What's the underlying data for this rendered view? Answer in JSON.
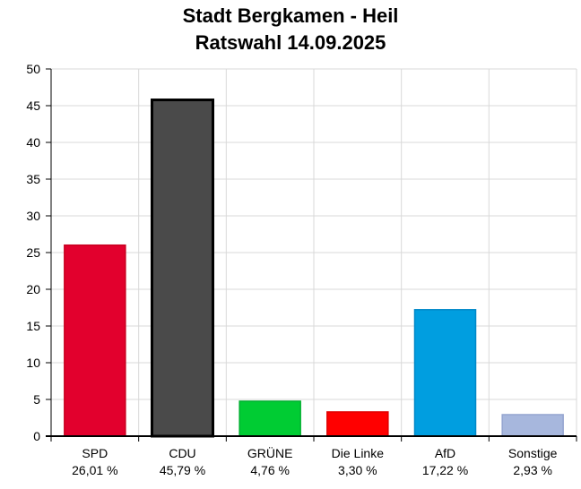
{
  "title": "Stadt Bergkamen - Heil",
  "subtitle": "Ratswahl 14.09.2025",
  "chart_data": {
    "type": "bar",
    "title": "Stadt Bergkamen - Heil",
    "subtitle": "Ratswahl 14.09.2025",
    "xlabel": "",
    "ylabel": "",
    "ylim": [
      0,
      50
    ],
    "yticks": [
      "0",
      "5",
      "10",
      "15",
      "20",
      "25",
      "30",
      "35",
      "40",
      "45",
      "50"
    ],
    "grid": true,
    "legend": "none",
    "categories": [
      "SPD",
      "CDU",
      "GRÜNE",
      "Die Linke",
      "AfD",
      "Sonstige"
    ],
    "values": [
      26.01,
      45.79,
      4.76,
      3.3,
      17.22,
      2.93
    ],
    "value_labels": [
      "26,01 %",
      "45,79 %",
      "4,76 %",
      "3,30 %",
      "17,22 %",
      "2,93 %"
    ],
    "colors": [
      "#e2002d",
      "#4a4a4a",
      "#00cc33",
      "#ff0000",
      "#009ee0",
      "#a7b7dd"
    ],
    "border_colors": [
      "#c8001f",
      "#000000",
      "#00b030",
      "#e00000",
      "#0088c8",
      "#95a5d0"
    ]
  }
}
